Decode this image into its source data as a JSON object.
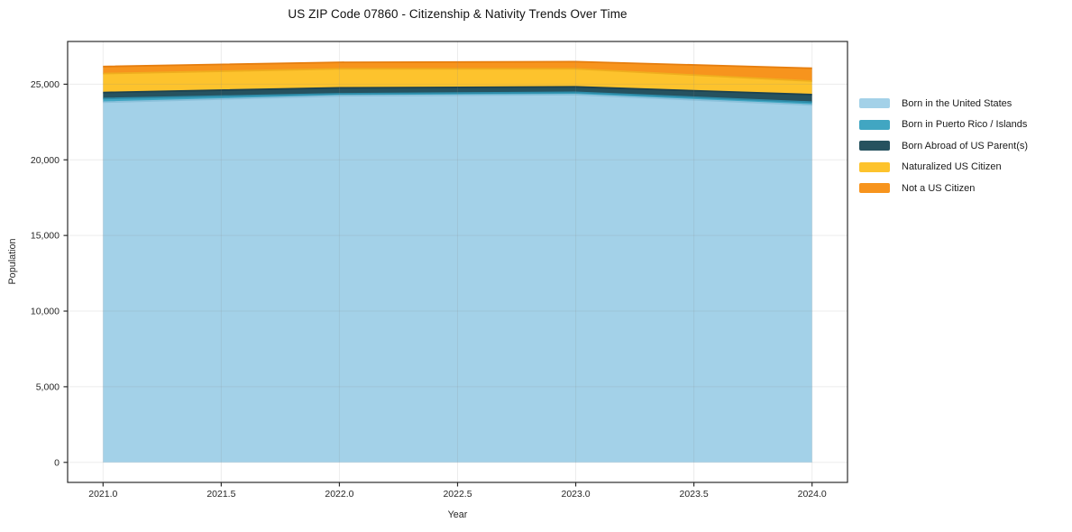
{
  "chart_data": {
    "type": "area",
    "title": "US ZIP Code 07860 - Citizenship & Nativity Trends Over Time",
    "xlabel": "Year",
    "ylabel": "Population",
    "x": [
      2021,
      2022,
      2023,
      2024
    ],
    "series": [
      {
        "name": "Born in the United States",
        "values": [
          23810,
          24230,
          24310,
          23620
        ],
        "color": "#A3D1E8",
        "edge": "#8CC1DB"
      },
      {
        "name": "Born in Puerto Rico / Islands",
        "values": [
          240,
          140,
          155,
          195
        ],
        "color": "#41A6C2",
        "edge": "#2D8CA9"
      },
      {
        "name": "Born Abroad of US Parent(s)",
        "values": [
          400,
          390,
          360,
          500
        ],
        "color": "#26525F",
        "edge": "#1C4250"
      },
      {
        "name": "Naturalized US Citizen",
        "values": [
          1250,
          1250,
          1190,
          890
        ],
        "color": "#FDC32D",
        "edge": "#EFAE1E"
      },
      {
        "name": "Not a US Citizen",
        "values": [
          470,
          440,
          475,
          850
        ],
        "color": "#F7941D",
        "edge": "#E67E0E"
      }
    ],
    "stacked": true,
    "xlim": [
      2020.85,
      2024.15
    ],
    "ylim": [
      -1325,
      27825
    ],
    "xticks": {
      "values": [
        2021.0,
        2021.5,
        2022.0,
        2022.5,
        2023.0,
        2023.5,
        2024.0
      ],
      "labels": [
        "2021.0",
        "2021.5",
        "2022.0",
        "2022.5",
        "2023.0",
        "2023.5",
        "2024.0"
      ]
    },
    "yticks": {
      "values": [
        0,
        5000,
        10000,
        15000,
        20000,
        25000
      ],
      "labels": [
        "0",
        "5,000",
        "10,000",
        "15,000",
        "20,000",
        "25,000"
      ]
    },
    "grid": true,
    "legend_position": "right-outside"
  },
  "colors": {
    "background": "#ffffff",
    "grid": "#8a8a8a",
    "spine": "#2b2b2b",
    "tick_text": "#262626"
  }
}
